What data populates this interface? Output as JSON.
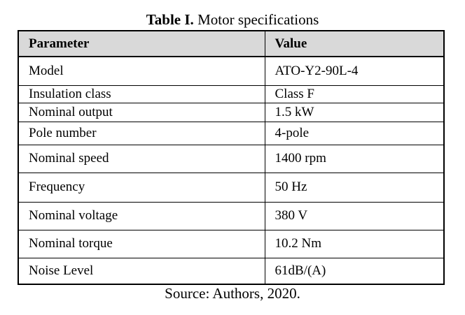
{
  "title": {
    "label": "Table I.",
    "text": "Motor specifications"
  },
  "table": {
    "header": [
      "Parameter",
      "Value"
    ],
    "rows": [
      [
        "Model",
        "ATO-Y2-90L-4"
      ],
      [
        "Insulation class",
        "Class F"
      ],
      [
        "Nominal output",
        "1.5 kW"
      ],
      [
        "Pole number",
        "4-pole"
      ],
      [
        "Nominal speed",
        "1400 rpm"
      ],
      [
        "Frequency",
        "50 Hz"
      ],
      [
        "Nominal voltage",
        "380 V"
      ],
      [
        "Nominal torque",
        "10.2 Nm"
      ],
      [
        "Noise Level",
        "61dB/(A)"
      ]
    ]
  },
  "source": "Source: Authors, 2020."
}
